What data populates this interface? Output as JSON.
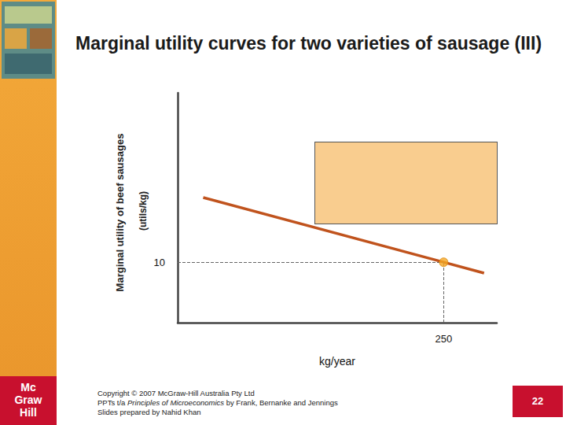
{
  "slide": {
    "title": "Marginal utility curves for two varieties of sausage (III)",
    "logo": [
      "Mc",
      "Graw",
      "Hill"
    ],
    "copyright": [
      "Copyright © 2007 McGraw-Hill Australia Pty Ltd",
      [
        "PPTs t/a ",
        "Principles of Microeconomics",
        " by Frank, Bernanke and Jennings"
      ],
      "Slides prepared by Nahid Khan"
    ],
    "page": "22"
  },
  "chart_data": {
    "type": "line",
    "x": [
      24,
      250,
      288
    ],
    "values": [
      20.7,
      10,
      8.2
    ],
    "color": "#c0531d",
    "x_label": "kg/year",
    "y_label": "Marginal utility of beef sausages",
    "y_unit": "(utils/kg)",
    "xlim": [
      0,
      300
    ],
    "ylim": [
      0,
      38
    ],
    "xticks": [
      250
    ],
    "yticks": [
      10
    ],
    "grid": false,
    "highlight": {
      "x": 250,
      "y": 10,
      "color": "#f5a623"
    }
  }
}
